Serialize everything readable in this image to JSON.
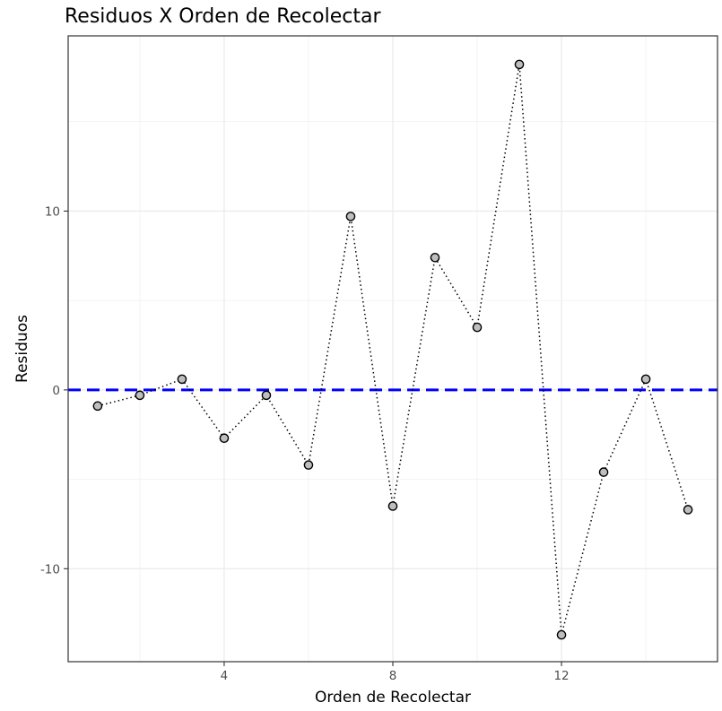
{
  "chart_data": {
    "type": "line",
    "title": "Residuos X Orden de Recolectar",
    "xlabel": "Orden de Recolectar",
    "ylabel": "Residuos",
    "xlim": [
      0.3,
      15.7
    ],
    "ylim": [
      -15.2,
      19.8
    ],
    "x_ticks": [
      4,
      8,
      12
    ],
    "x_tick_labels": [
      "4",
      "8",
      "12"
    ],
    "x_minor_ticks": [
      2,
      6,
      10,
      14
    ],
    "y_ticks": [
      -10,
      0,
      10
    ],
    "y_tick_labels": [
      "-10",
      "0",
      "10"
    ],
    "y_minor_ticks": [
      -5,
      5,
      15
    ],
    "grid": true,
    "reference_line": {
      "y": 0,
      "style": "dashed",
      "color": "#0000ff"
    },
    "series": [
      {
        "style": "dotted",
        "color": "#000000",
        "marker_fill": "#bebebe",
        "x": [
          1,
          2,
          3,
          4,
          5,
          6,
          7,
          8,
          9,
          10,
          11,
          12,
          13,
          14,
          15
        ],
        "y": [
          -0.9,
          -0.3,
          0.6,
          -2.7,
          -0.3,
          -4.2,
          9.7,
          -6.5,
          7.4,
          3.5,
          18.2,
          -13.7,
          -4.6,
          0.6,
          -6.7
        ]
      }
    ]
  }
}
